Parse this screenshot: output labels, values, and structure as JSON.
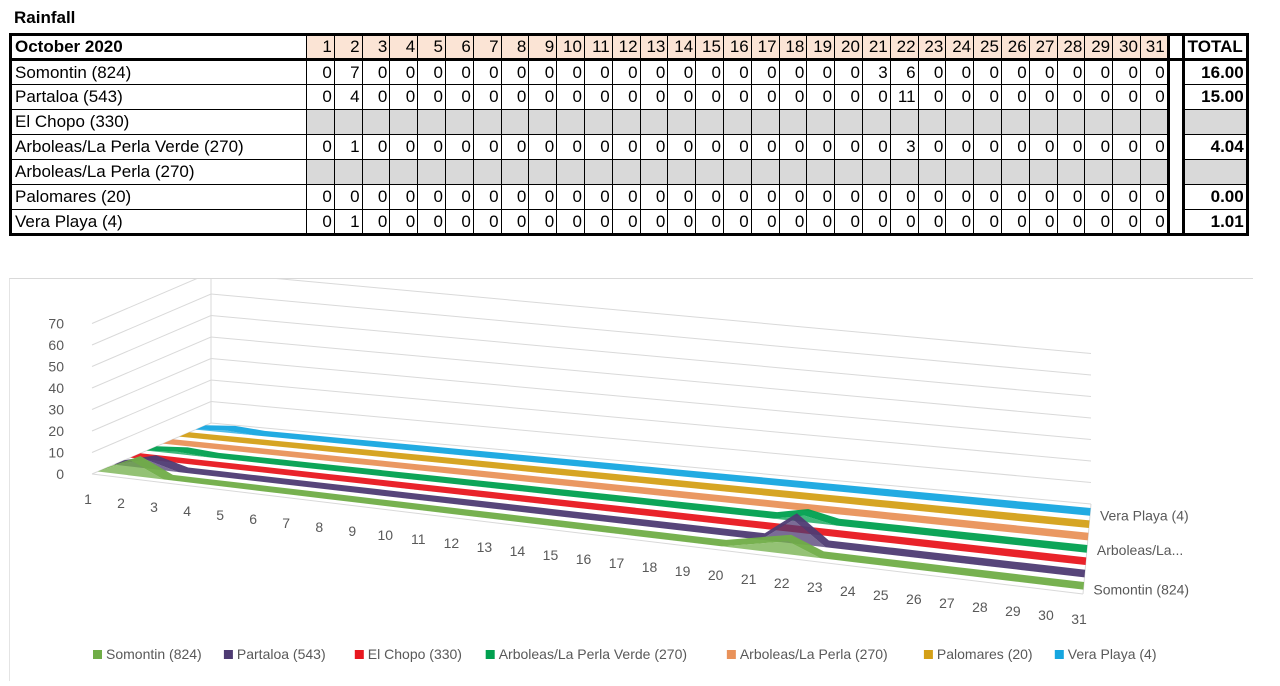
{
  "title": "Rainfall",
  "table": {
    "header_label": "October 2020",
    "total_label": "TOTAL",
    "days": [
      "1",
      "2",
      "3",
      "4",
      "5",
      "6",
      "7",
      "8",
      "9",
      "10",
      "11",
      "12",
      "13",
      "14",
      "15",
      "16",
      "17",
      "18",
      "19",
      "20",
      "21",
      "22",
      "23",
      "24",
      "25",
      "26",
      "27",
      "28",
      "29",
      "30",
      "31"
    ],
    "rows": [
      {
        "name": "Somontin (824)",
        "values": [
          "0",
          "7",
          "0",
          "0",
          "0",
          "0",
          "0",
          "0",
          "0",
          "0",
          "0",
          "0",
          "0",
          "0",
          "0",
          "0",
          "0",
          "0",
          "0",
          "0",
          "3",
          "6",
          "0",
          "0",
          "0",
          "0",
          "0",
          "0",
          "0",
          "0",
          "0"
        ],
        "total": "16.00"
      },
      {
        "name": "Partaloa (543)",
        "values": [
          "0",
          "4",
          "0",
          "0",
          "0",
          "0",
          "0",
          "0",
          "0",
          "0",
          "0",
          "0",
          "0",
          "0",
          "0",
          "0",
          "0",
          "0",
          "0",
          "0",
          "0",
          "11",
          "0",
          "0",
          "0",
          "0",
          "0",
          "0",
          "0",
          "0",
          "0"
        ],
        "total": "15.00"
      },
      {
        "name": "El Chopo (330)",
        "values": [],
        "total": ""
      },
      {
        "name": "Arboleas/La Perla Verde (270)",
        "values": [
          "0",
          "1",
          "0",
          "0",
          "0",
          "0",
          "0",
          "0",
          "0",
          "0",
          "0",
          "0",
          "0",
          "0",
          "0",
          "0",
          "0",
          "0",
          "0",
          "0",
          "0",
          "3",
          "0",
          "0",
          "0",
          "0",
          "0",
          "0",
          "0",
          "0",
          "0"
        ],
        "total": "4.04"
      },
      {
        "name": "Arboleas/La Perla (270)",
        "values": [],
        "total": ""
      },
      {
        "name": "Palomares (20)",
        "values": [
          "0",
          "0",
          "0",
          "0",
          "0",
          "0",
          "0",
          "0",
          "0",
          "0",
          "0",
          "0",
          "0",
          "0",
          "0",
          "0",
          "0",
          "0",
          "0",
          "0",
          "0",
          "0",
          "0",
          "0",
          "0",
          "0",
          "0",
          "0",
          "0",
          "0",
          "0"
        ],
        "total": "0.00"
      },
      {
        "name": "Vera Playa (4)",
        "values": [
          "0",
          "1",
          "0",
          "0",
          "0",
          "0",
          "0",
          "0",
          "0",
          "0",
          "0",
          "0",
          "0",
          "0",
          "0",
          "0",
          "0",
          "0",
          "0",
          "0",
          "0",
          "0",
          "0",
          "0",
          "0",
          "0",
          "0",
          "0",
          "0",
          "0",
          "0"
        ],
        "total": "1.01"
      }
    ]
  },
  "chart_data": {
    "type": "area",
    "categories": [
      "1",
      "2",
      "3",
      "4",
      "5",
      "6",
      "7",
      "8",
      "9",
      "10",
      "11",
      "12",
      "13",
      "14",
      "15",
      "16",
      "17",
      "18",
      "19",
      "20",
      "21",
      "22",
      "23",
      "24",
      "25",
      "26",
      "27",
      "28",
      "29",
      "30",
      "31"
    ],
    "ylim": [
      0,
      70
    ],
    "yticks": [
      "0",
      "10",
      "20",
      "30",
      "40",
      "50",
      "60",
      "70"
    ],
    "depth_labels": [
      "Vera Playa (4)",
      "Arboleas/La...",
      "Somontin (824)"
    ],
    "legend_position": "bottom",
    "series": [
      {
        "name": "Somontin (824)",
        "color": "#70ad47",
        "values": [
          0,
          7,
          0,
          0,
          0,
          0,
          0,
          0,
          0,
          0,
          0,
          0,
          0,
          0,
          0,
          0,
          0,
          0,
          0,
          0,
          3,
          6,
          0,
          0,
          0,
          0,
          0,
          0,
          0,
          0,
          0
        ]
      },
      {
        "name": "Partaloa (543)",
        "color": "#4e3b73",
        "values": [
          0,
          4,
          0,
          0,
          0,
          0,
          0,
          0,
          0,
          0,
          0,
          0,
          0,
          0,
          0,
          0,
          0,
          0,
          0,
          0,
          0,
          11,
          0,
          0,
          0,
          0,
          0,
          0,
          0,
          0,
          0
        ]
      },
      {
        "name": "El Chopo (330)",
        "color": "#e8171f",
        "values": [
          0,
          0,
          0,
          0,
          0,
          0,
          0,
          0,
          0,
          0,
          0,
          0,
          0,
          0,
          0,
          0,
          0,
          0,
          0,
          0,
          0,
          0,
          0,
          0,
          0,
          0,
          0,
          0,
          0,
          0,
          0
        ]
      },
      {
        "name": "Arboleas/La Perla Verde (270)",
        "color": "#00a04f",
        "values": [
          0,
          1,
          0,
          0,
          0,
          0,
          0,
          0,
          0,
          0,
          0,
          0,
          0,
          0,
          0,
          0,
          0,
          0,
          0,
          0,
          0,
          3,
          0,
          0,
          0,
          0,
          0,
          0,
          0,
          0,
          0
        ]
      },
      {
        "name": "Arboleas/La Perla (270)",
        "color": "#e9925a",
        "values": [
          0,
          0,
          0,
          0,
          0,
          0,
          0,
          0,
          0,
          0,
          0,
          0,
          0,
          0,
          0,
          0,
          0,
          0,
          0,
          0,
          0,
          0,
          0,
          0,
          0,
          0,
          0,
          0,
          0,
          0,
          0
        ]
      },
      {
        "name": "Palomares (20)",
        "color": "#d4a017",
        "values": [
          0,
          0,
          0,
          0,
          0,
          0,
          0,
          0,
          0,
          0,
          0,
          0,
          0,
          0,
          0,
          0,
          0,
          0,
          0,
          0,
          0,
          0,
          0,
          0,
          0,
          0,
          0,
          0,
          0,
          0,
          0
        ]
      },
      {
        "name": "Vera Playa (4)",
        "color": "#16a6e0",
        "values": [
          0,
          1,
          0,
          0,
          0,
          0,
          0,
          0,
          0,
          0,
          0,
          0,
          0,
          0,
          0,
          0,
          0,
          0,
          0,
          0,
          0,
          0,
          0,
          0,
          0,
          0,
          0,
          0,
          0,
          0,
          0
        ]
      }
    ]
  }
}
